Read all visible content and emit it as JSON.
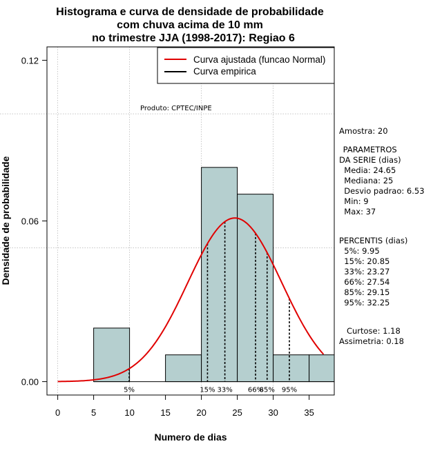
{
  "chart_data": {
    "type": "bar",
    "title_lines": [
      "Histograma e curva de densidade de probabilidade",
      "com chuva acima de 10 mm",
      "no trimestre JJA (1998-2017): Regiao 6"
    ],
    "xlabel": "Numero de dias",
    "ylabel": "Densidade de probabilidade",
    "xlim": [
      -1.5,
      38.5
    ],
    "ylim": [
      -0.005,
      0.125
    ],
    "x_ticks": [
      0,
      5,
      10,
      15,
      20,
      25,
      30,
      35
    ],
    "y_ticks": [
      0.0,
      0.06,
      0.12
    ],
    "y_tick_labels": [
      "0.00",
      "0.06",
      "0.12"
    ],
    "bins": [
      {
        "start": 5,
        "end": 10,
        "density": 0.02
      },
      {
        "start": 10,
        "end": 15,
        "density": 0.0
      },
      {
        "start": 15,
        "end": 20,
        "density": 0.01
      },
      {
        "start": 20,
        "end": 25,
        "density": 0.08
      },
      {
        "start": 25,
        "end": 30,
        "density": 0.07
      },
      {
        "start": 30,
        "end": 35,
        "density": 0.01
      },
      {
        "start": 35,
        "end": 40,
        "density": 0.01
      }
    ],
    "normal_fit": {
      "mean": 24.65,
      "sd": 6.53,
      "x_from": 0,
      "x_to": 37
    },
    "percentile_lines": [
      {
        "label": "5%",
        "value": 9.95
      },
      {
        "label": "15%",
        "value": 20.85
      },
      {
        "label": "33%",
        "value": 23.27
      },
      {
        "label": "66%",
        "value": 27.54
      },
      {
        "label": "85%",
        "value": 29.15
      },
      {
        "label": "95%",
        "value": 32.25
      }
    ],
    "legend": {
      "position": "top-right",
      "entries": [
        {
          "label": "Curva ajustada (funcao Normal)",
          "color": "#e00000"
        },
        {
          "label": "Curva empirica",
          "color": "#000000"
        }
      ]
    },
    "annotation": "Produto: CPTEC/INPE",
    "grid": true,
    "colors": {
      "bar_fill": "#b5cfcf",
      "curve": "#e00000",
      "grid": "#b0b0b0"
    }
  },
  "side_panel": {
    "amostra": "Amostra: 20",
    "parametros_title": " PARAMETROS",
    "parametros_sub": "DA SERIE (dias)",
    "parametros": [
      "  Media: 24.65",
      "  Mediana: 25",
      "  Desvio padrao: 6.53",
      "  Min: 9",
      "  Max: 37"
    ],
    "percentis_title": "PERCENTIS (dias)",
    "percentis": [
      "  5%: 9.95",
      "  15%: 20.85",
      "  33%: 23.27",
      "  66%: 27.54",
      "  85%: 29.15",
      "  95%: 32.25"
    ],
    "curtose": "   Curtose: 1.18",
    "assimetria": "Assimetria: 0.18"
  }
}
